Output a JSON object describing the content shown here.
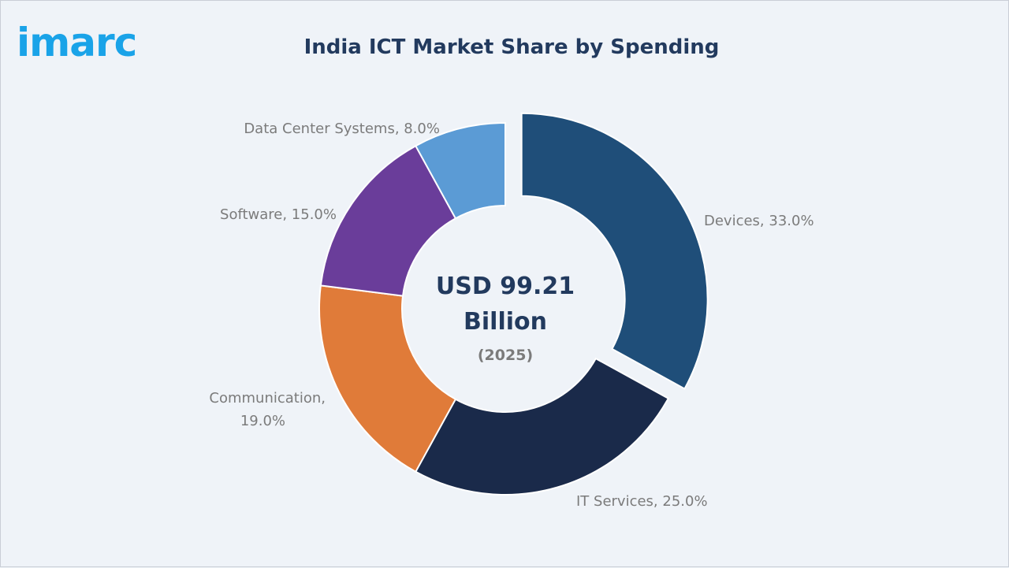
{
  "brand": {
    "logo_text": "imarc"
  },
  "chart_data": {
    "type": "pie",
    "title": "India ICT Market Share by Spending",
    "center": {
      "line1": "USD 99.21",
      "line2": "Billion",
      "line3": "(2025)"
    },
    "slices": [
      {
        "name": "Devices",
        "value": 33.0,
        "label": "Devices, 33.0%",
        "color": "#1f4e79",
        "exploded": true
      },
      {
        "name": "IT Services",
        "value": 25.0,
        "label": "IT Services, 25.0%",
        "color": "#1a2a4a"
      },
      {
        "name": "Communication",
        "value": 19.0,
        "label_lines": [
          "Communication,",
          "19.0%"
        ],
        "color": "#e07b39"
      },
      {
        "name": "Software",
        "value": 15.0,
        "label": "Software, 15.0%",
        "color": "#6a3d9a"
      },
      {
        "name": "Data Center Systems",
        "value": 8.0,
        "label": "Data Center Systems, 8.0%",
        "color": "#5b9bd5"
      }
    ]
  }
}
